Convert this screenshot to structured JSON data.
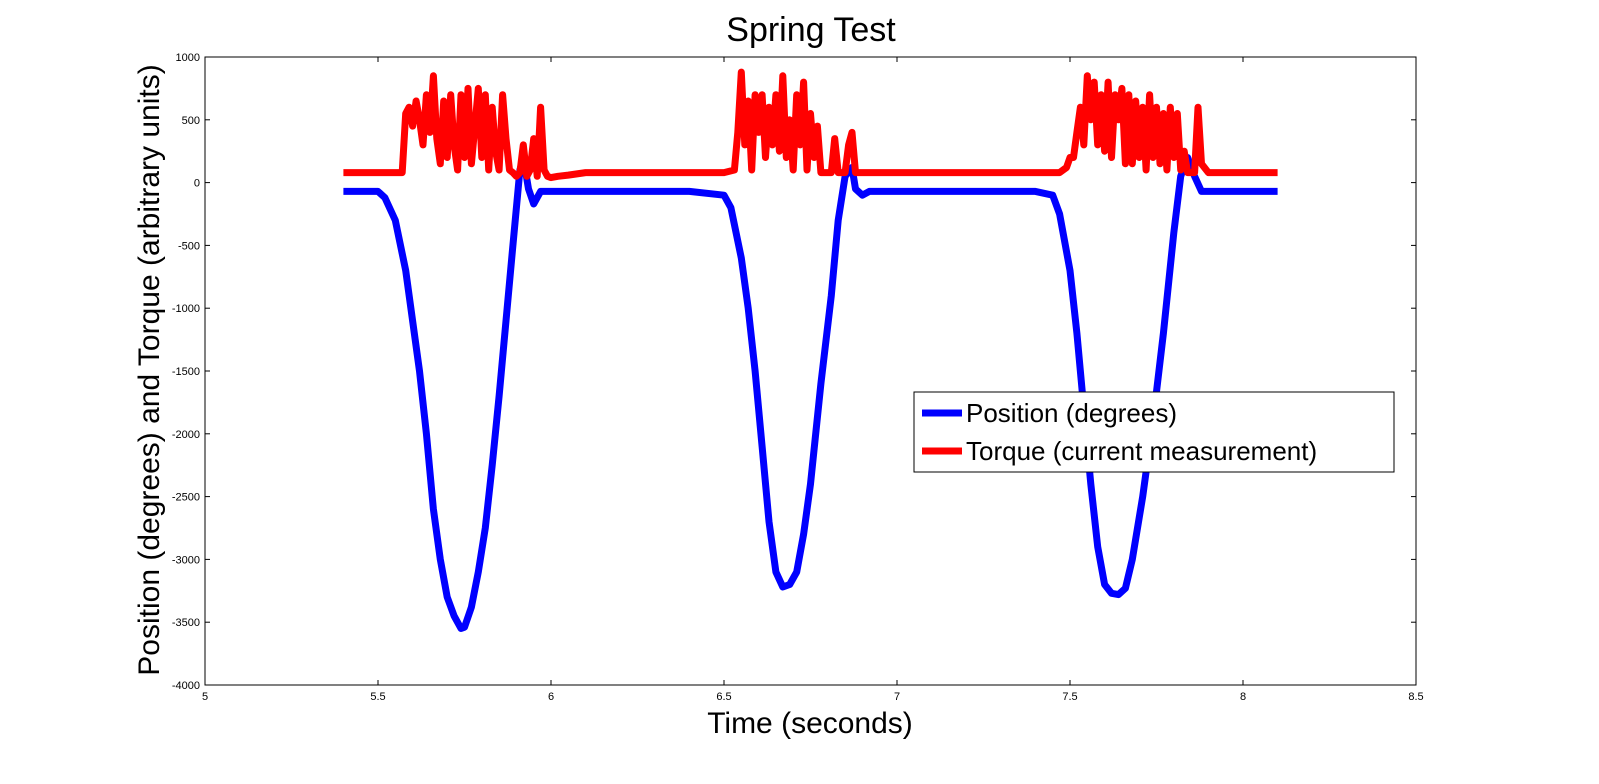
{
  "chart_data": {
    "type": "line",
    "title": "Spring Test",
    "xlabel": "Time (seconds)",
    "ylabel": "Position (degrees) and Torque (arbitrary units)",
    "xlim": [
      5,
      8.5
    ],
    "ylim": [
      -4000,
      1000
    ],
    "xticks": [
      5,
      5.5,
      6,
      6.5,
      7,
      7.5,
      8,
      8.5
    ],
    "xtick_labels": [
      "5",
      "5.5",
      "6",
      "6.5",
      "7",
      "7.5",
      "8",
      "8.5"
    ],
    "yticks": [
      1000,
      500,
      0,
      -500,
      -1000,
      -1500,
      -2000,
      -2500,
      -3000,
      -3500,
      -4000
    ],
    "ytick_labels": [
      "1000",
      "500",
      "0",
      "-500",
      "-1000",
      "-1500",
      "-2000",
      "-2500",
      "-3000",
      "-3500",
      "-4000"
    ],
    "grid": false,
    "legend_position": "right",
    "series": [
      {
        "name": "Position (degrees)",
        "color": "#0000ff",
        "x": [
          5.4,
          5.5,
          5.52,
          5.55,
          5.58,
          5.6,
          5.62,
          5.64,
          5.66,
          5.68,
          5.7,
          5.72,
          5.74,
          5.75,
          5.77,
          5.79,
          5.81,
          5.83,
          5.85,
          5.87,
          5.89,
          5.91,
          5.92,
          5.935,
          5.95,
          5.97,
          6.0,
          6.2,
          6.4,
          6.5,
          6.52,
          6.55,
          6.57,
          6.59,
          6.61,
          6.63,
          6.65,
          6.67,
          6.69,
          6.71,
          6.73,
          6.75,
          6.78,
          6.81,
          6.83,
          6.85,
          6.87,
          6.88,
          6.9,
          6.92,
          7.0,
          7.2,
          7.4,
          7.45,
          7.47,
          7.5,
          7.52,
          7.54,
          7.56,
          7.58,
          7.6,
          7.62,
          7.64,
          7.66,
          7.68,
          7.71,
          7.74,
          7.77,
          7.8,
          7.82,
          7.84,
          7.86,
          7.88,
          7.9,
          8.0,
          8.1
        ],
        "y": [
          -70,
          -70,
          -120,
          -300,
          -700,
          -1100,
          -1500,
          -2000,
          -2600,
          -3000,
          -3300,
          -3450,
          -3550,
          -3540,
          -3380,
          -3100,
          -2750,
          -2250,
          -1700,
          -1100,
          -500,
          100,
          200,
          -50,
          -170,
          -70,
          -70,
          -70,
          -70,
          -100,
          -200,
          -600,
          -1000,
          -1500,
          -2100,
          -2700,
          -3100,
          -3220,
          -3200,
          -3100,
          -2800,
          -2400,
          -1600,
          -900,
          -300,
          50,
          120,
          -50,
          -100,
          -70,
          -70,
          -70,
          -70,
          -100,
          -250,
          -700,
          -1200,
          -1800,
          -2400,
          -2900,
          -3200,
          -3270,
          -3280,
          -3230,
          -3000,
          -2500,
          -1900,
          -1200,
          -400,
          50,
          200,
          50,
          -70,
          -70,
          -70,
          -70
        ]
      },
      {
        "name": "Torque (current measurement)",
        "color": "#ff0000",
        "x": [
          5.4,
          5.5,
          5.57,
          5.58,
          5.59,
          5.6,
          5.61,
          5.62,
          5.63,
          5.64,
          5.65,
          5.66,
          5.67,
          5.68,
          5.69,
          5.7,
          5.71,
          5.72,
          5.73,
          5.74,
          5.75,
          5.76,
          5.77,
          5.78,
          5.79,
          5.8,
          5.81,
          5.82,
          5.83,
          5.84,
          5.85,
          5.86,
          5.87,
          5.88,
          5.89,
          5.9,
          5.91,
          5.92,
          5.93,
          5.94,
          5.95,
          5.96,
          5.97,
          5.98,
          5.99,
          6.0,
          6.02,
          6.05,
          6.1,
          6.3,
          6.5,
          6.53,
          6.54,
          6.55,
          6.56,
          6.57,
          6.58,
          6.59,
          6.6,
          6.61,
          6.62,
          6.63,
          6.64,
          6.65,
          6.66,
          6.67,
          6.68,
          6.69,
          6.7,
          6.71,
          6.72,
          6.73,
          6.74,
          6.75,
          6.76,
          6.77,
          6.78,
          6.79,
          6.8,
          6.81,
          6.82,
          6.83,
          6.84,
          6.85,
          6.86,
          6.87,
          6.88,
          6.9,
          7.0,
          7.2,
          7.4,
          7.47,
          7.49,
          7.5,
          7.51,
          7.52,
          7.53,
          7.54,
          7.55,
          7.56,
          7.57,
          7.58,
          7.59,
          7.6,
          7.61,
          7.62,
          7.63,
          7.64,
          7.65,
          7.66,
          7.67,
          7.68,
          7.69,
          7.7,
          7.71,
          7.72,
          7.73,
          7.74,
          7.75,
          7.76,
          7.77,
          7.78,
          7.79,
          7.8,
          7.81,
          7.82,
          7.83,
          7.84,
          7.85,
          7.86,
          7.87,
          7.88,
          7.9,
          8.0,
          8.1
        ],
        "y": [
          80,
          80,
          80,
          550,
          600,
          450,
          650,
          500,
          300,
          700,
          400,
          850,
          350,
          150,
          650,
          200,
          700,
          300,
          100,
          700,
          200,
          750,
          150,
          450,
          750,
          200,
          700,
          100,
          600,
          250,
          100,
          700,
          350,
          100,
          80,
          50,
          80,
          300,
          50,
          100,
          350,
          50,
          600,
          100,
          50,
          40,
          50,
          60,
          80,
          80,
          80,
          100,
          400,
          880,
          300,
          650,
          100,
          700,
          400,
          700,
          200,
          600,
          300,
          700,
          250,
          850,
          200,
          500,
          100,
          700,
          300,
          800,
          100,
          550,
          200,
          450,
          80,
          80,
          80,
          80,
          350,
          80,
          80,
          80,
          300,
          400,
          80,
          80,
          80,
          80,
          80,
          80,
          120,
          200,
          200,
          400,
          600,
          300,
          850,
          500,
          800,
          300,
          700,
          250,
          800,
          200,
          700,
          500,
          750,
          150,
          700,
          150,
          650,
          200,
          600,
          100,
          700,
          200,
          600,
          150,
          550,
          100,
          600,
          200,
          550,
          100,
          250,
          80,
          80,
          80,
          600,
          150,
          80,
          80,
          80
        ]
      }
    ]
  }
}
